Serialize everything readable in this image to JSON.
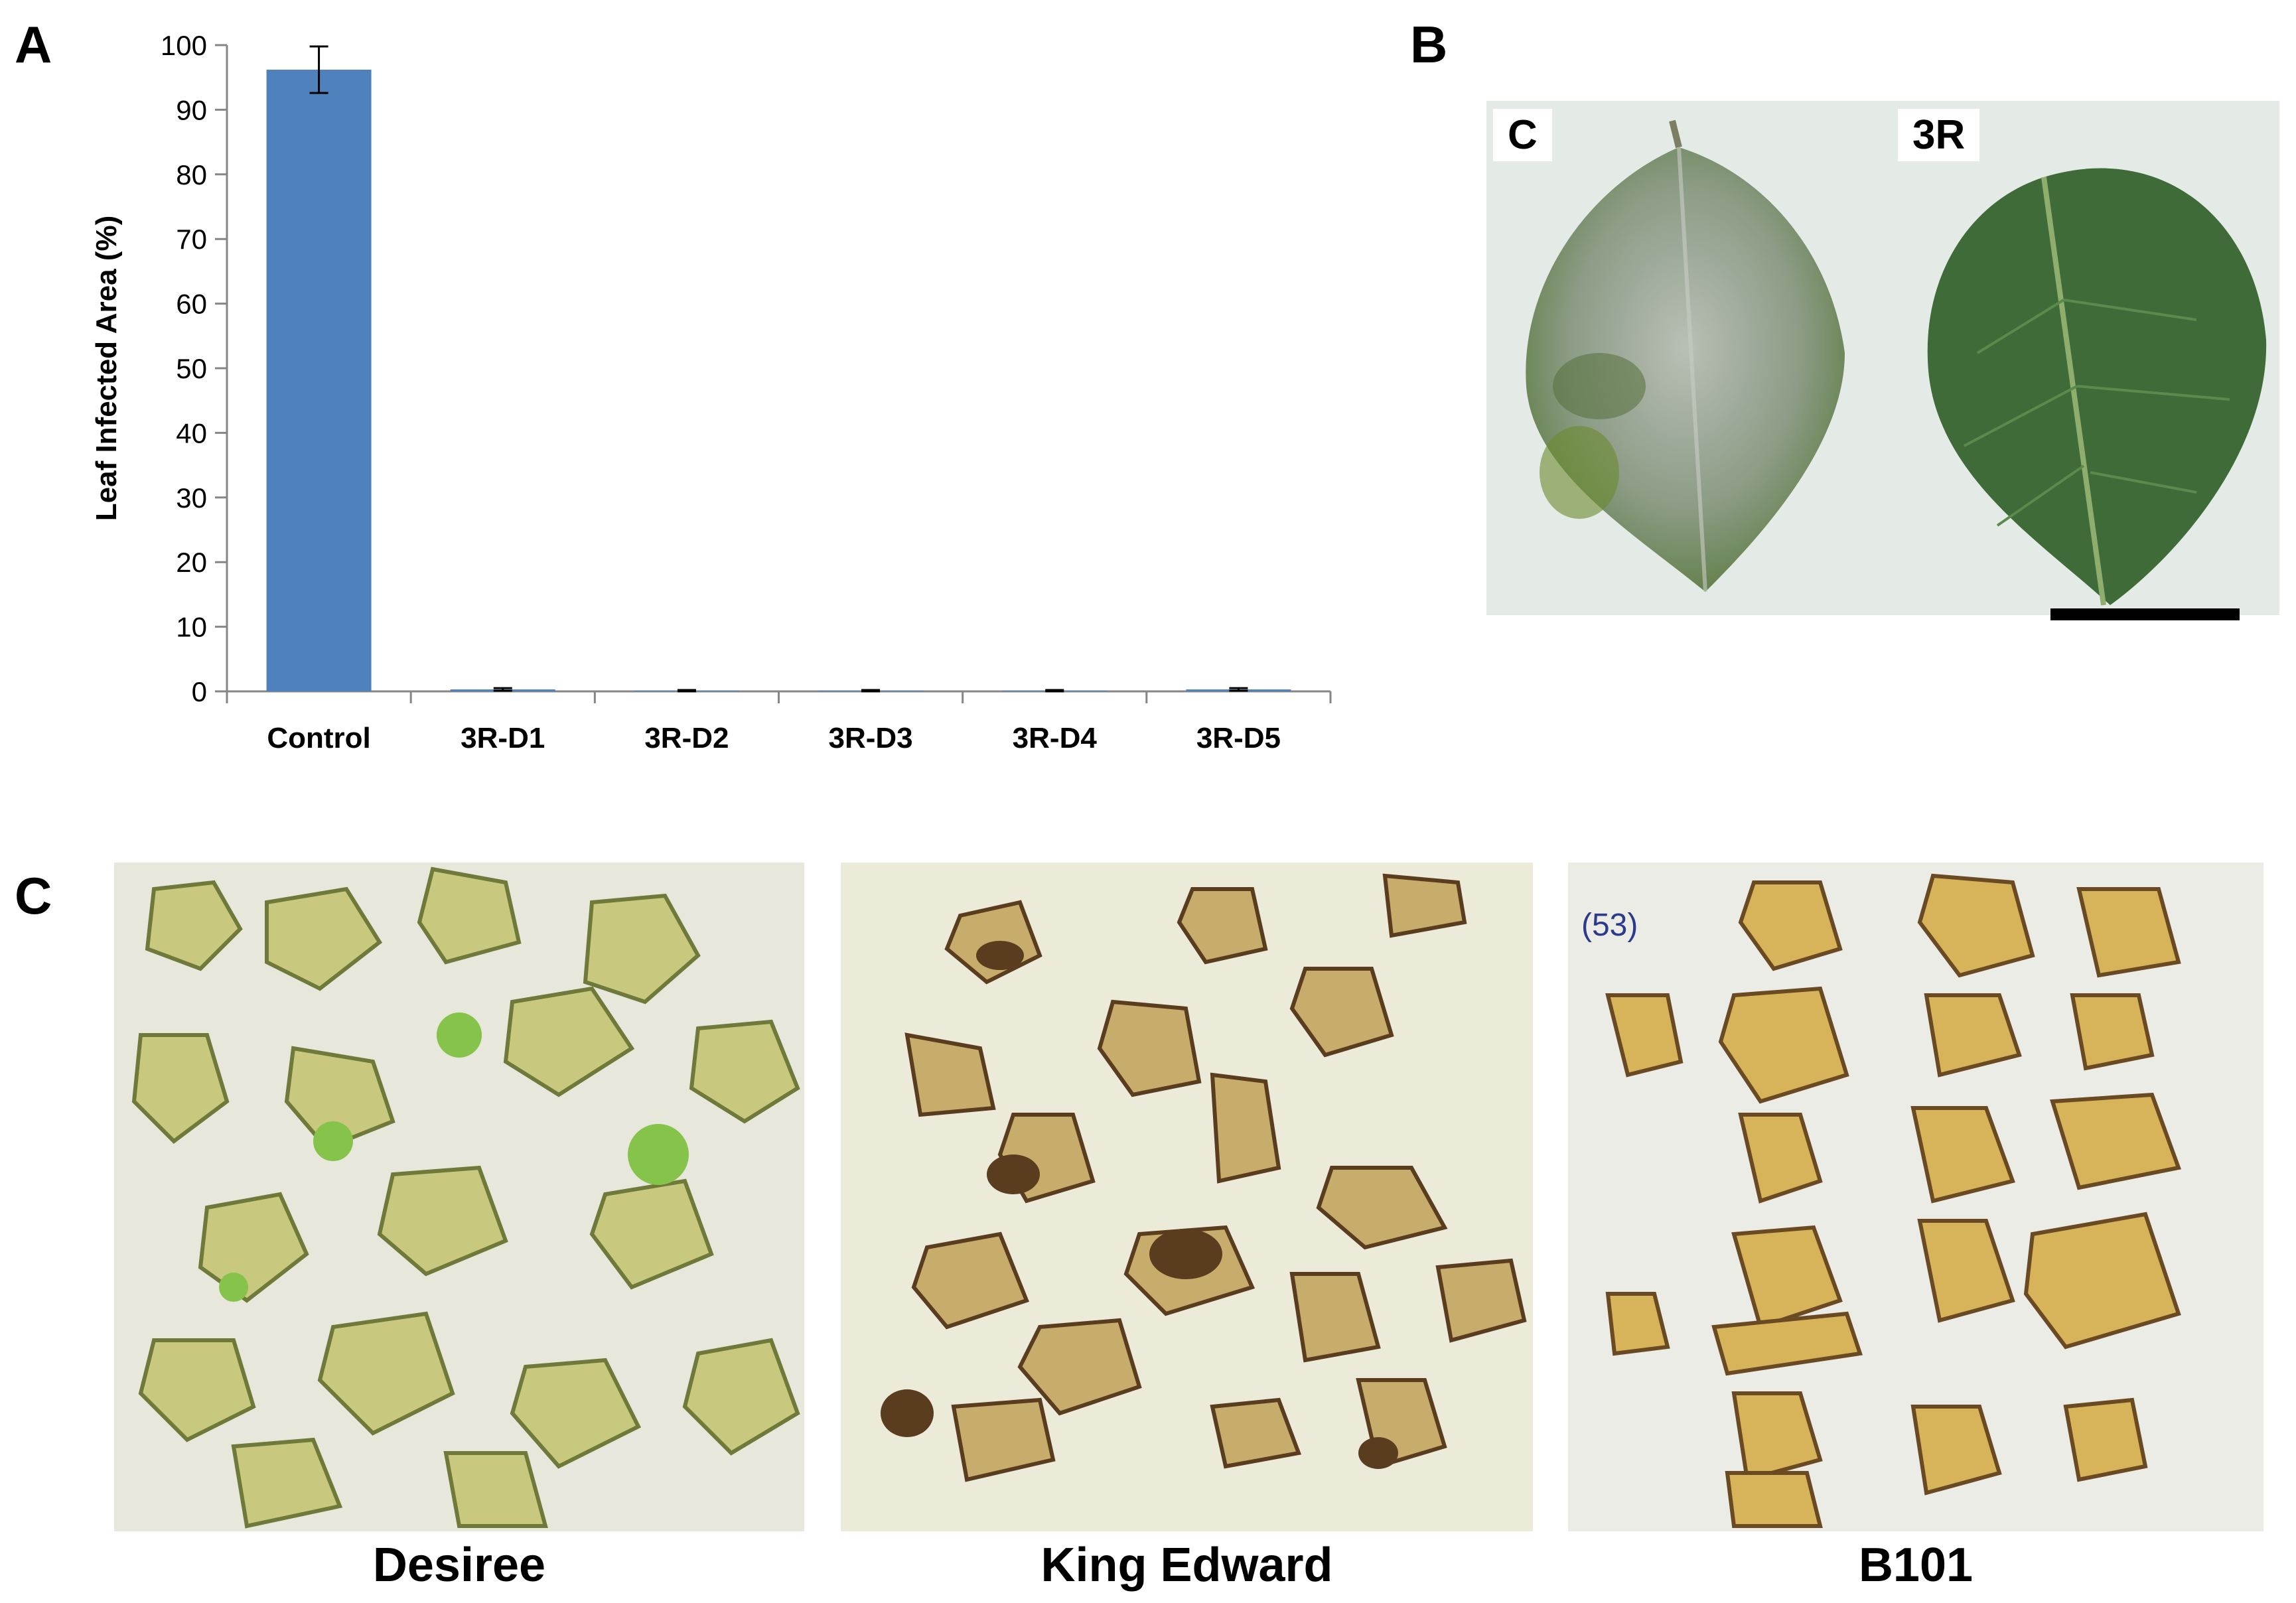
{
  "panels": {
    "a_label": "A",
    "b_label": "B",
    "c_label": "C"
  },
  "chart_data": {
    "type": "bar",
    "ylabel": "Leaf Infected Area (%)",
    "xlabel": "",
    "ylim": [
      0,
      100
    ],
    "yticks": [
      0,
      10,
      20,
      30,
      40,
      50,
      60,
      70,
      80,
      90,
      100
    ],
    "categories": [
      "Control",
      "3R-D1",
      "3R-D2",
      "3R-D3",
      "3R-D4",
      "3R-D5"
    ],
    "values": [
      96.2,
      0.3,
      0.1,
      0.1,
      0.1,
      0.3
    ],
    "error": [
      3.6,
      0.2,
      0.1,
      0.1,
      0.1,
      0.2
    ],
    "bar_color": "#4f81bd",
    "grid": false,
    "legend": "none"
  },
  "leaf_photo": {
    "left_label": "C",
    "right_label": "3R"
  },
  "plates": [
    {
      "name": "Desiree"
    },
    {
      "name": "King Edward"
    },
    {
      "name": "B101"
    }
  ]
}
